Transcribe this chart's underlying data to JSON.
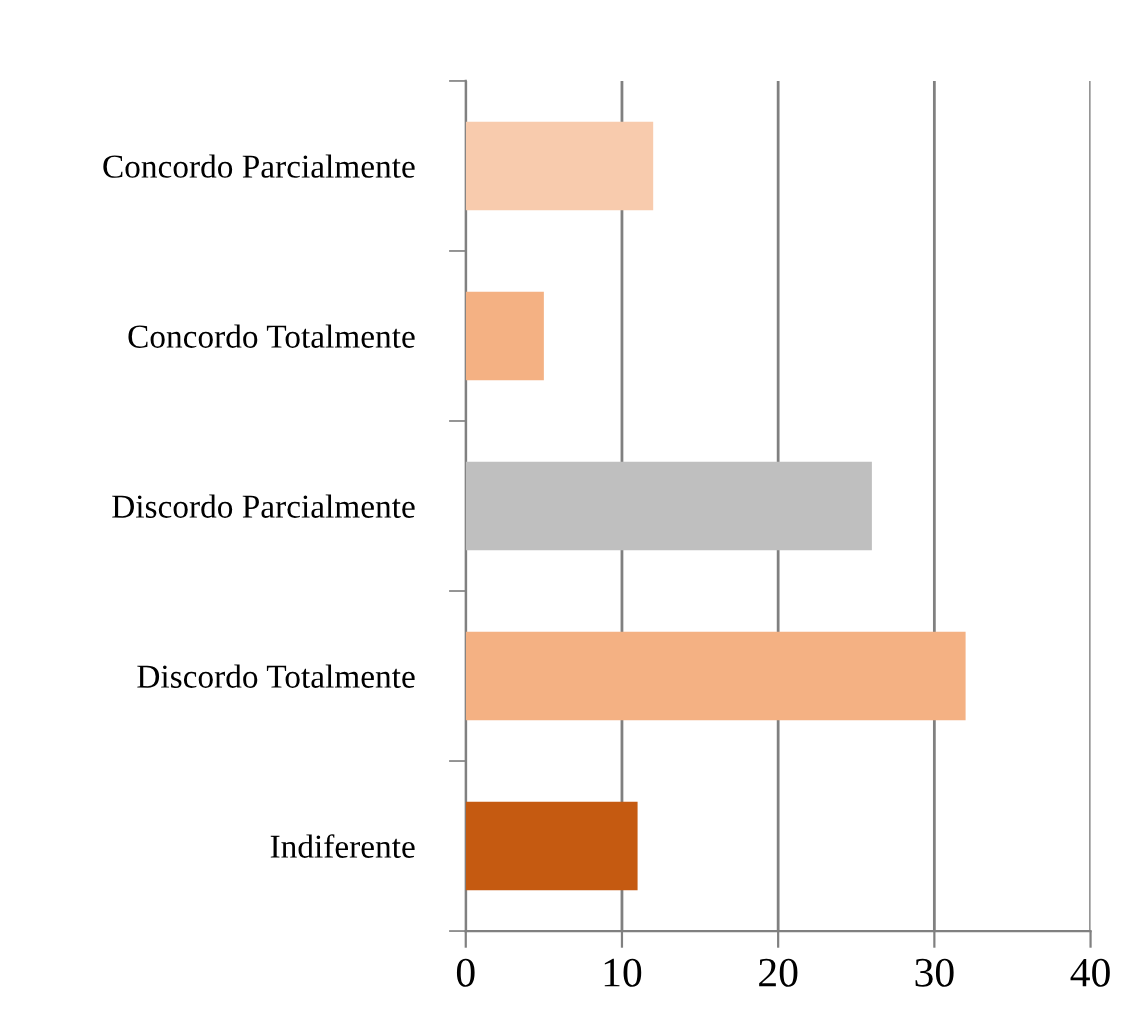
{
  "chart_data": {
    "type": "bar",
    "orientation": "horizontal",
    "categories": [
      "Concordo Parcialmente",
      "Concordo Totalmente",
      "Discordo Parcialmente",
      "Discordo Totalmente",
      "Indiferente"
    ],
    "values": [
      12,
      5,
      26,
      32,
      11
    ],
    "colors": [
      "#f8cbad",
      "#f4b183",
      "#bfbfbf",
      "#f4b183",
      "#c55a11"
    ],
    "xlim": [
      0,
      40
    ],
    "xticks": [
      0,
      10,
      20,
      30,
      40
    ],
    "grid": "x"
  }
}
